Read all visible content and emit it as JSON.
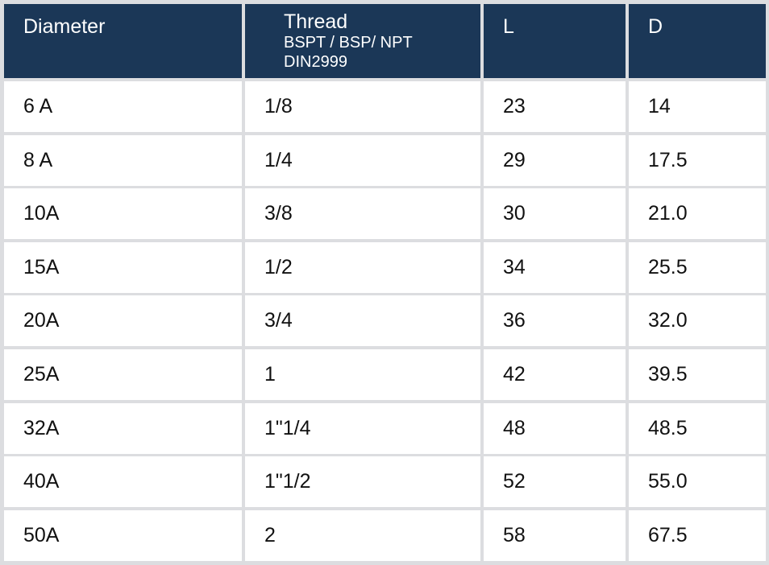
{
  "table": {
    "header": [
      [
        "Diameter"
      ],
      [
        "Thread",
        "BSPT / BSP/ NPT",
        "DIN2999"
      ],
      [
        "L"
      ],
      [
        "D"
      ]
    ],
    "rows": [
      [
        "6 A",
        "1/8",
        "23",
        "14"
      ],
      [
        "8 A",
        "1/4",
        "29",
        "17.5"
      ],
      [
        "10A",
        "3/8",
        "30",
        "21.0"
      ],
      [
        "15A",
        "1/2",
        "34",
        "25.5"
      ],
      [
        "20A",
        "3/4",
        "36",
        "32.0"
      ],
      [
        "25A",
        "1",
        "42",
        "39.5"
      ],
      [
        "32A",
        "1\"1/4",
        "48",
        "48.5"
      ],
      [
        "40A",
        "1\"1/2",
        "52",
        "55.0"
      ],
      [
        "50A",
        "2",
        "58",
        "67.5"
      ]
    ]
  }
}
